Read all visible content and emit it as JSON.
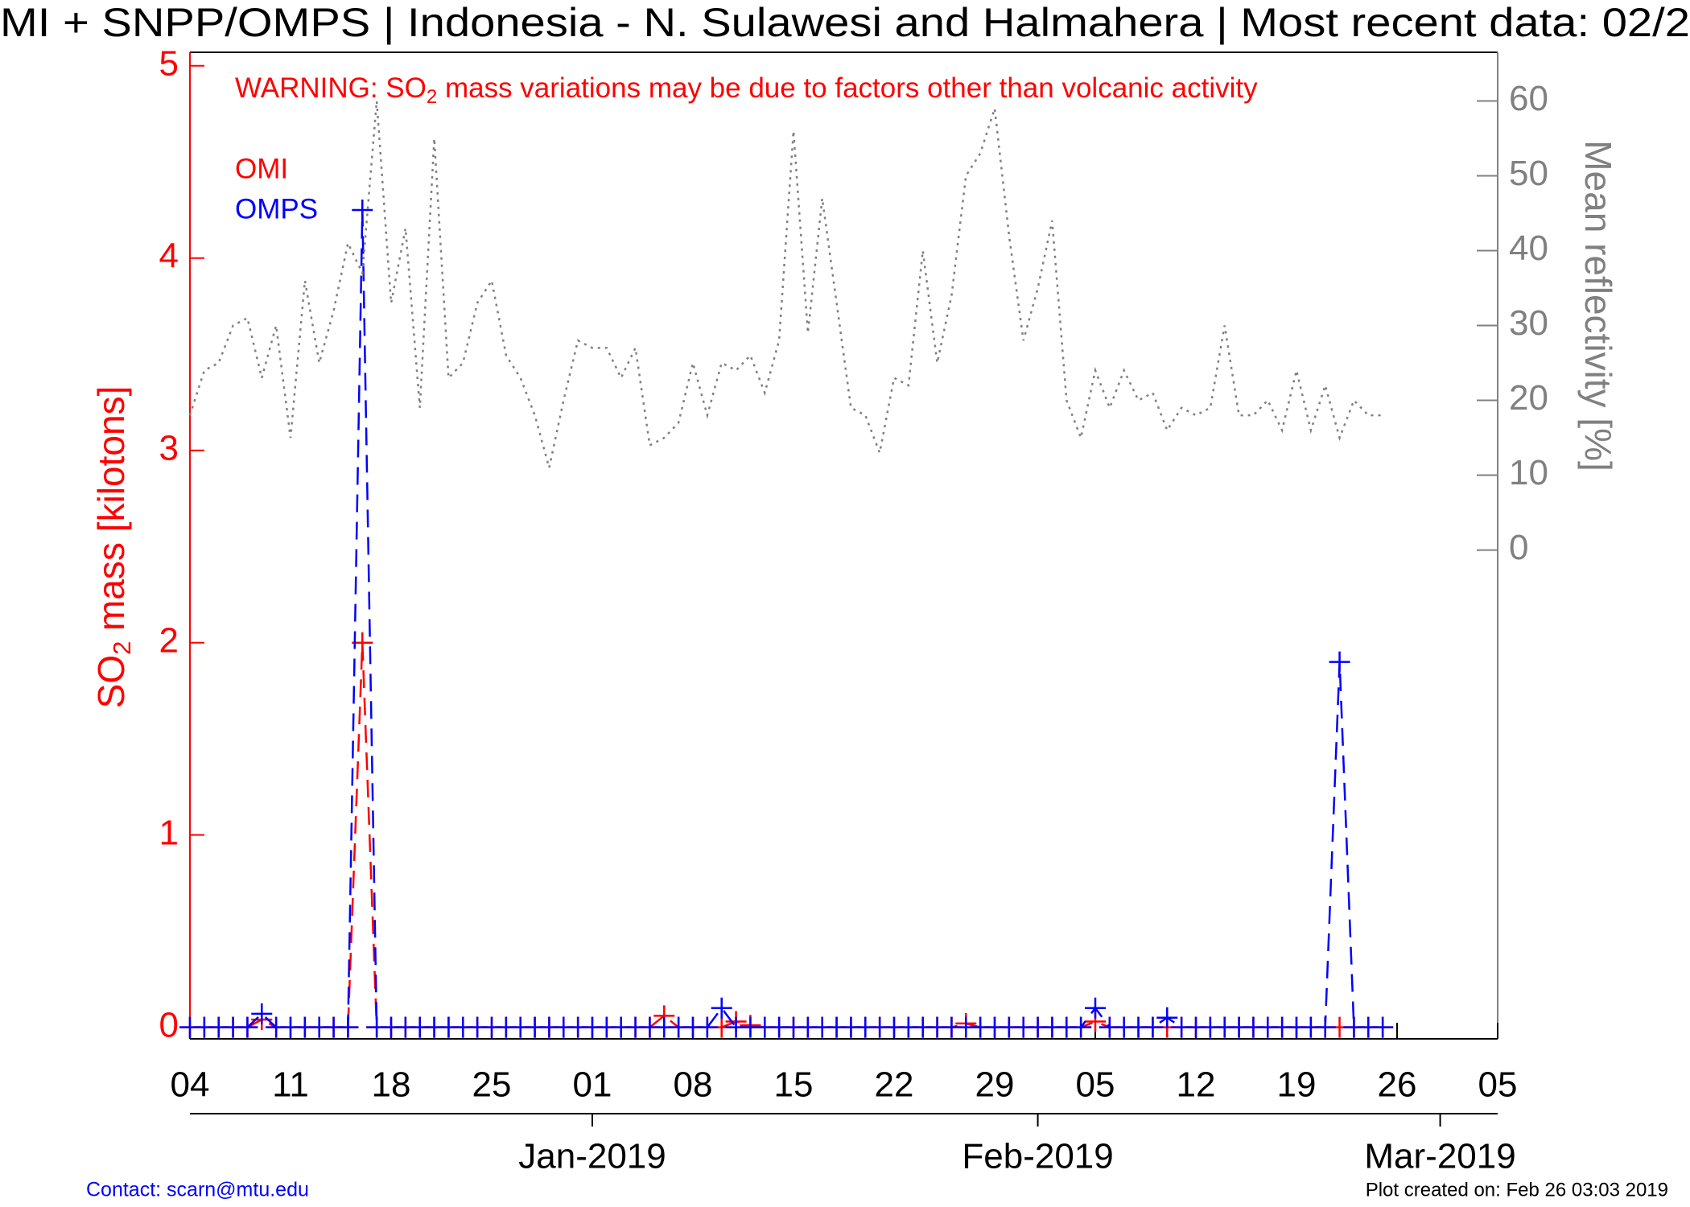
{
  "chart_data": {
    "type": "line",
    "title": "MI + SNPP/OMPS | Indonesia - N. Sulawesi and Halmahera | Most recent data: 02/2",
    "warning": [
      "WARNING: SO",
      "2",
      " mass variations may be due to factors other than volcanic activity"
    ],
    "y_label": [
      "SO",
      "2",
      " mass [kilotons]"
    ],
    "y2_label": "Mean reflectivity [%]",
    "contact": "Contact: scarn@mtu.edu",
    "created": "Plot created on: Feb 26 03:03 2019",
    "x": [
      0,
      1,
      2,
      3,
      4,
      5,
      6,
      7,
      8,
      9,
      10,
      11,
      12,
      13,
      14,
      15,
      16,
      17,
      18,
      19,
      20,
      21,
      22,
      23,
      24,
      25,
      26,
      27,
      28,
      29,
      30,
      31,
      32,
      33,
      34,
      35,
      36,
      37,
      38,
      39,
      40,
      41,
      42,
      43,
      44,
      45,
      46,
      47,
      48,
      49,
      50,
      51,
      52,
      53,
      54,
      55,
      56,
      57,
      58,
      59,
      60,
      61,
      62,
      63,
      64,
      65,
      66,
      67,
      68,
      69,
      70,
      71,
      72,
      73,
      74,
      75,
      76,
      77,
      78,
      79,
      80,
      81,
      82,
      83
    ],
    "xlim": [
      0,
      91
    ],
    "xticks": [
      {
        "value": 0,
        "label": "04"
      },
      {
        "value": 7,
        "label": "11"
      },
      {
        "value": 14,
        "label": "18"
      },
      {
        "value": 21,
        "label": "25"
      },
      {
        "value": 28,
        "label": "01"
      },
      {
        "value": 35,
        "label": "08"
      },
      {
        "value": 42,
        "label": "15"
      },
      {
        "value": 49,
        "label": "22"
      },
      {
        "value": 56,
        "label": "29"
      },
      {
        "value": 63,
        "label": "05"
      },
      {
        "value": 70,
        "label": "12"
      },
      {
        "value": 77,
        "label": "19"
      },
      {
        "value": 84,
        "label": "26"
      },
      {
        "value": 91,
        "label": "05"
      }
    ],
    "month_ticks": [
      {
        "value": 28,
        "label": "Jan-2019"
      },
      {
        "value": 59,
        "label": "Feb-2019"
      },
      {
        "value": 87,
        "label": "Mar-2019"
      }
    ],
    "ylim": [
      -0.06,
      5.07
    ],
    "yticks": [
      0,
      1,
      2,
      3,
      4,
      5
    ],
    "y2lim": [
      -65.3,
      66.5
    ],
    "y2ticks": [
      0,
      10,
      20,
      30,
      40,
      50,
      60
    ],
    "series": [
      {
        "name": "OMI",
        "color": "#ff0000",
        "values": [
          0,
          0,
          0,
          0,
          0,
          0.04,
          0,
          0,
          0,
          0,
          0,
          0,
          2,
          0,
          0,
          0,
          0,
          0,
          0,
          0,
          0,
          0,
          0,
          0,
          0,
          0,
          0,
          0,
          0,
          0,
          0,
          0,
          0,
          0.06,
          0,
          0,
          0,
          0,
          0.03,
          0.01,
          0,
          0,
          0,
          0,
          0,
          0,
          0,
          0,
          0,
          0,
          0,
          0,
          0,
          0,
          0.02,
          0,
          0,
          0,
          0,
          0,
          0,
          0,
          0,
          0.03,
          0,
          0,
          0,
          0,
          0,
          0,
          0,
          0,
          0,
          0,
          0,
          0,
          0,
          0,
          0,
          0,
          0,
          0,
          0,
          0
        ]
      },
      {
        "name": "OMPS",
        "color": "#0000ff",
        "values": [
          0,
          0,
          0,
          0,
          0,
          0.07,
          0,
          0,
          0,
          0,
          0,
          0,
          4.25,
          0,
          0,
          0,
          0,
          0,
          0,
          0,
          0,
          0,
          0,
          0,
          0,
          0,
          0,
          0,
          0,
          0,
          0,
          0,
          0,
          0,
          0,
          0,
          0,
          0.1,
          0,
          0,
          0,
          0,
          0,
          0,
          0,
          0,
          0,
          0,
          0,
          0,
          0,
          0,
          0,
          0,
          0,
          0,
          0,
          0,
          0,
          0,
          0,
          0,
          0,
          0.1,
          0,
          0,
          0,
          0,
          0.05,
          0,
          0,
          0,
          0,
          0,
          0,
          0,
          0,
          0,
          0,
          0,
          1.9,
          0,
          0,
          0
        ]
      },
      {
        "color": "#808080",
        "axis": "y2",
        "values": [
          18,
          24,
          25,
          30,
          31,
          23,
          30,
          15,
          36,
          25,
          32,
          41,
          37,
          60,
          33,
          43,
          19,
          55,
          23,
          25,
          33,
          36,
          26,
          23,
          18,
          11,
          20,
          28,
          27,
          27,
          23,
          27,
          14,
          15,
          17,
          25,
          18,
          25,
          24,
          26,
          21,
          28,
          56,
          29,
          47,
          33,
          19,
          18,
          13,
          23,
          22,
          40,
          25,
          34,
          50,
          53,
          59,
          42,
          28,
          35,
          44,
          20,
          15,
          24,
          19,
          24,
          20,
          21,
          16,
          19,
          18,
          19,
          30,
          18,
          18,
          20,
          16,
          24,
          16,
          22,
          15,
          20,
          18,
          18
        ]
      }
    ]
  }
}
